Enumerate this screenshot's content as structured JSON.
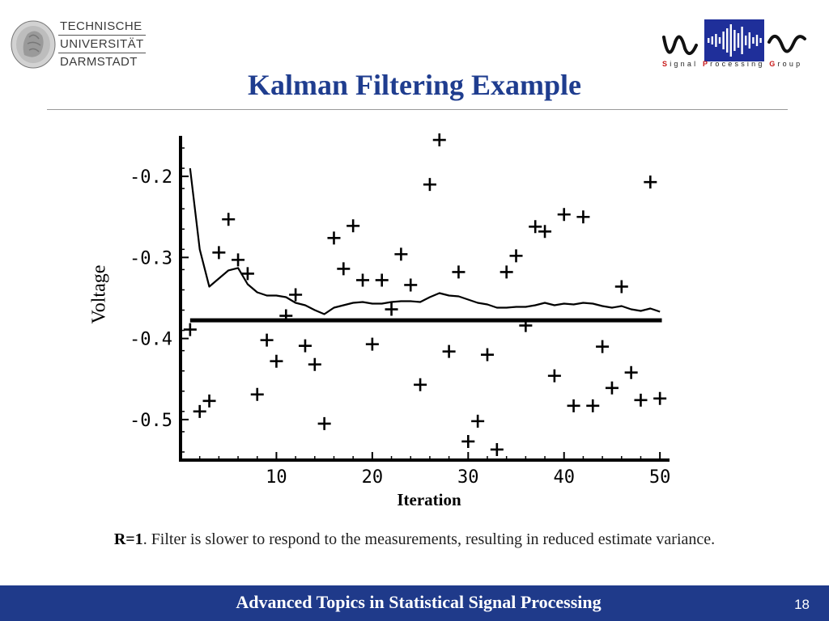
{
  "header": {
    "university_lines": [
      "TECHNISCHE",
      "UNIVERSITÄT",
      "DARMSTADT"
    ],
    "group_letters": [
      "S",
      "i",
      "g",
      "n",
      "a",
      "l",
      " ",
      "P",
      "r",
      "o",
      "c",
      "e",
      "s",
      "s",
      "i",
      "n",
      "g",
      " ",
      "G",
      "r",
      "o",
      "u",
      "p"
    ],
    "group_accent_color": "#c81818"
  },
  "slide": {
    "title": "Kalman Filtering Example",
    "caption_bold": "R=1",
    "caption_rest": ". Filter is slower to respond to the measurements, resulting in reduced estimate variance."
  },
  "footer": {
    "title": "Advanced Topics in Statistical Signal Processing",
    "page": "18",
    "bg_color": "#1f3a8a"
  },
  "chart_data": {
    "type": "scatter",
    "title": "",
    "xlabel": "Iteration",
    "ylabel": "Voltage",
    "xlim": [
      0,
      51
    ],
    "ylim": [
      -0.55,
      -0.15
    ],
    "x_ticks": [
      10,
      20,
      30,
      40,
      50
    ],
    "y_ticks": [
      -0.5,
      -0.4,
      -0.3,
      -0.2
    ],
    "x_tick_labels": [
      "10",
      "20",
      "30",
      "40",
      "50"
    ],
    "y_tick_labels": [
      "-0.5",
      "-0.4",
      "-0.3",
      "-0.2"
    ],
    "grid": false,
    "measurements": {
      "x": [
        1,
        2,
        3,
        4,
        5,
        6,
        7,
        8,
        9,
        10,
        11,
        12,
        13,
        14,
        15,
        16,
        17,
        18,
        19,
        20,
        21,
        22,
        23,
        24,
        25,
        26,
        27,
        28,
        29,
        30,
        31,
        32,
        33,
        34,
        35,
        36,
        37,
        38,
        39,
        40,
        41,
        42,
        43,
        44,
        45,
        46,
        47,
        48,
        49,
        50
      ],
      "y": [
        -0.389,
        -0.49,
        -0.477,
        -0.294,
        -0.253,
        -0.303,
        -0.32,
        -0.469,
        -0.402,
        -0.428,
        -0.372,
        -0.346,
        -0.409,
        -0.432,
        -0.505,
        -0.276,
        -0.314,
        -0.261,
        -0.328,
        -0.407,
        -0.328,
        -0.364,
        -0.296,
        -0.334,
        -0.457,
        -0.21,
        -0.155,
        -0.416,
        -0.318,
        -0.527,
        -0.502,
        -0.42,
        -0.537,
        -0.318,
        -0.298,
        -0.384,
        -0.262,
        -0.268,
        -0.446,
        -0.247,
        -0.483,
        -0.25,
        -0.483,
        -0.41,
        -0.461,
        -0.336,
        -0.442,
        -0.476,
        -0.207,
        -0.474
      ]
    },
    "estimate": {
      "x": [
        1,
        2,
        3,
        4,
        5,
        6,
        7,
        8,
        9,
        10,
        11,
        12,
        13,
        14,
        15,
        16,
        17,
        18,
        19,
        20,
        21,
        22,
        23,
        24,
        25,
        26,
        27,
        28,
        29,
        30,
        31,
        32,
        33,
        34,
        35,
        36,
        37,
        38,
        39,
        40,
        41,
        42,
        43,
        44,
        45,
        46,
        47,
        48,
        49,
        50
      ],
      "y": [
        -0.19,
        -0.29,
        -0.336,
        -0.326,
        -0.316,
        -0.313,
        -0.333,
        -0.343,
        -0.347,
        -0.347,
        -0.349,
        -0.356,
        -0.359,
        -0.365,
        -0.37,
        -0.362,
        -0.359,
        -0.356,
        -0.355,
        -0.357,
        -0.357,
        -0.355,
        -0.354,
        -0.354,
        -0.355,
        -0.349,
        -0.344,
        -0.347,
        -0.348,
        -0.352,
        -0.356,
        -0.358,
        -0.362,
        -0.362,
        -0.361,
        -0.361,
        -0.359,
        -0.356,
        -0.359,
        -0.357,
        -0.358,
        -0.356,
        -0.357,
        -0.36,
        -0.362,
        -0.36,
        -0.364,
        -0.366,
        -0.363,
        -0.367
      ]
    },
    "true_value": -0.3775
  }
}
